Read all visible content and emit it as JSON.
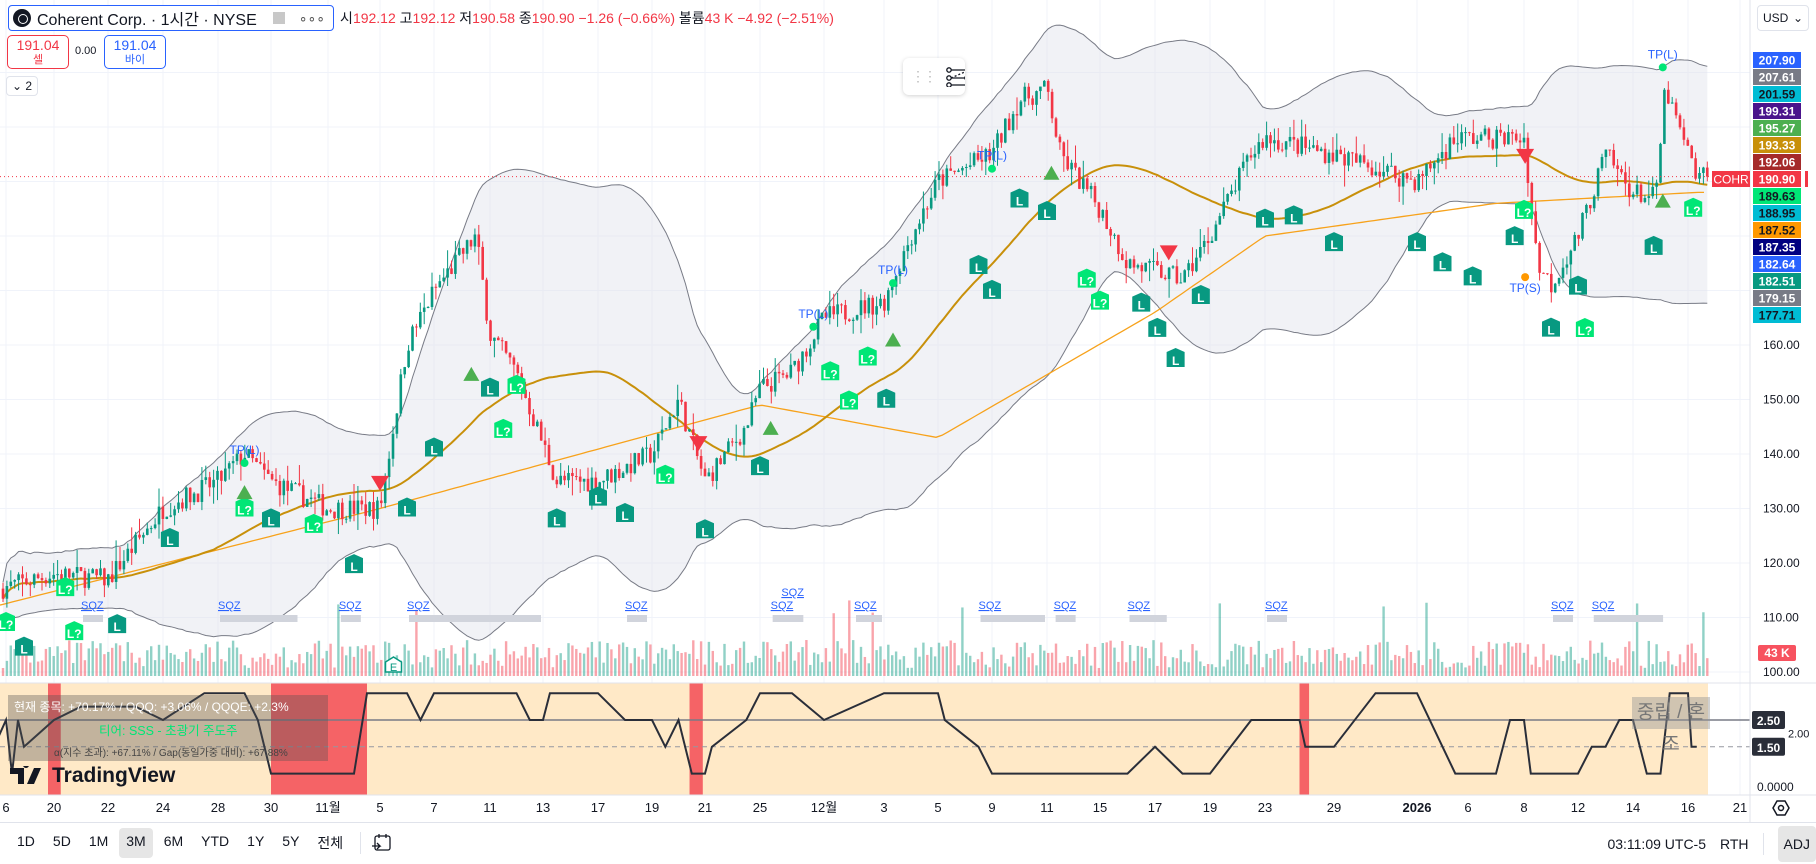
{
  "header": {
    "symbol_title": "Coherent Corp. · 1시간 · NYSE",
    "more": "∘∘∘",
    "ohlc": {
      "o_label": "시",
      "o": "192.12",
      "h_label": "고",
      "h": "192.12",
      "l_label": "저",
      "l": "190.58",
      "c_label": "종",
      "c": "190.90",
      "change": "−1.26 (−0.66%)",
      "vol_label": "볼륨",
      "vol": "43 K",
      "vol_change": "−4.92 (−2.51%)"
    },
    "sell": {
      "price": "191.04",
      "label": "셀"
    },
    "spread": "0.00",
    "buy": {
      "price": "191.04",
      "label": "바이"
    },
    "collapse": "⌄ 2",
    "currency": "USD"
  },
  "overlay": {
    "line1": "현재 종목: +70.17% / QQQ: +3.06% / QQQE: +2.3%",
    "line2": "티어: SSS - 초광기 주도주",
    "line3": "α(지수 초과): +67.11% / Gap(동일가중 대비): +67.88%",
    "regime": "중립 / 혼조",
    "brand": "TradingView"
  },
  "toolbar": {
    "ranges": [
      "1D",
      "5D",
      "1M",
      "3M",
      "6M",
      "YTD",
      "1Y",
      "5Y",
      "전체"
    ],
    "selected": "3M",
    "time": "03:11:09 UTC-5",
    "session": "RTH",
    "adj": "ADJ"
  },
  "colors": {
    "up": "#089981",
    "down": "#f23645",
    "bb_mid": "#c8900a",
    "ma_long": "#f7a21b",
    "accent": "#2962ff",
    "regime_bg": "#ffe9c7",
    "red_zone": "#f23645"
  },
  "chart_data": {
    "type": "candlestick",
    "symbol": "COHR",
    "interval": "1시간",
    "last_price": 190.9,
    "last_volume_label": "43 K",
    "price_ticks": [
      "160.00",
      "150.00",
      "140.00",
      "130.00",
      "120.00",
      "110.00",
      "100.00"
    ],
    "price_tags": [
      {
        "v": "207.90",
        "bg": "#2962ff",
        "fg": "#fff"
      },
      {
        "v": "207.61",
        "bg": "#787b86",
        "fg": "#fff"
      },
      {
        "v": "201.59",
        "bg": "#00bcd4",
        "fg": "#131722"
      },
      {
        "v": "199.31",
        "bg": "#4a148c",
        "fg": "#fff"
      },
      {
        "v": "195.27",
        "bg": "#4caf50",
        "fg": "#fff"
      },
      {
        "v": "193.33",
        "bg": "#c8900a",
        "fg": "#fff"
      },
      {
        "v": "192.06",
        "bg": "#a52a2a",
        "fg": "#fff"
      },
      {
        "v": "190.90",
        "bg": "#f23645",
        "fg": "#fff",
        "label": "COHR"
      },
      {
        "v": "189.63",
        "bg": "#00e676",
        "fg": "#131722"
      },
      {
        "v": "188.95",
        "bg": "#00bcd4",
        "fg": "#131722"
      },
      {
        "v": "187.52",
        "bg": "#ff9800",
        "fg": "#131722"
      },
      {
        "v": "187.35",
        "bg": "#000080",
        "fg": "#fff"
      },
      {
        "v": "182.64",
        "bg": "#2962ff",
        "fg": "#fff"
      },
      {
        "v": "182.51",
        "bg": "#089981",
        "fg": "#fff"
      },
      {
        "v": "179.15",
        "bg": "#787b86",
        "fg": "#fff"
      },
      {
        "v": "177.71",
        "bg": "#00bcd4",
        "fg": "#131722"
      }
    ],
    "x_ticks": [
      {
        "label": "6",
        "date": "2025-10-16"
      },
      {
        "label": "20",
        "date": "2025-10-20"
      },
      {
        "label": "22",
        "date": "2025-10-22"
      },
      {
        "label": "24",
        "date": "2025-10-24"
      },
      {
        "label": "28",
        "date": "2025-10-28"
      },
      {
        "label": "30",
        "date": "2025-10-30"
      },
      {
        "label": "11월",
        "date": "2025-11-03"
      },
      {
        "label": "5",
        "date": "2025-11-05"
      },
      {
        "label": "7",
        "date": "2025-11-07"
      },
      {
        "label": "11",
        "date": "2025-11-11"
      },
      {
        "label": "13",
        "date": "2025-11-13"
      },
      {
        "label": "17",
        "date": "2025-11-17"
      },
      {
        "label": "19",
        "date": "2025-11-19"
      },
      {
        "label": "21",
        "date": "2025-11-21"
      },
      {
        "label": "25",
        "date": "2025-11-25"
      },
      {
        "label": "12월",
        "date": "2025-12-01"
      },
      {
        "label": "3",
        "date": "2025-12-03"
      },
      {
        "label": "5",
        "date": "2025-12-05"
      },
      {
        "label": "9",
        "date": "2025-12-09"
      },
      {
        "label": "11",
        "date": "2025-12-11"
      },
      {
        "label": "15",
        "date": "2025-12-15"
      },
      {
        "label": "17",
        "date": "2025-12-17"
      },
      {
        "label": "19",
        "date": "2025-12-19"
      },
      {
        "label": "23",
        "date": "2025-12-23"
      },
      {
        "label": "29",
        "date": "2025-12-29"
      },
      {
        "label": "2026",
        "date": "2026-01-02"
      },
      {
        "label": "6",
        "date": "2026-01-06"
      },
      {
        "label": "8",
        "date": "2026-01-08"
      },
      {
        "label": "12",
        "date": "2026-01-12"
      },
      {
        "label": "14",
        "date": "2026-01-14"
      },
      {
        "label": "16",
        "date": "2026-01-16"
      },
      {
        "label": "21",
        "date": "2026-01-21"
      }
    ],
    "price_path": [
      [
        "2025-10-15",
        115
      ],
      [
        "2025-10-20",
        118
      ],
      [
        "2025-10-22",
        117
      ],
      [
        "2025-10-24",
        130
      ],
      [
        "2025-10-28",
        135
      ],
      [
        "2025-10-29",
        140
      ],
      [
        "2025-10-30",
        135
      ],
      [
        "2025-11-03",
        130
      ],
      [
        "2025-11-05",
        130
      ],
      [
        "2025-11-06",
        160
      ],
      [
        "2025-11-07",
        170
      ],
      [
        "2025-11-10",
        180
      ],
      [
        "2025-11-11",
        162
      ],
      [
        "2025-11-12",
        155
      ],
      [
        "2025-11-14",
        135
      ],
      [
        "2025-11-17",
        135
      ],
      [
        "2025-11-19",
        140
      ],
      [
        "2025-11-20",
        150
      ],
      [
        "2025-11-21",
        135
      ],
      [
        "2025-11-24",
        145
      ],
      [
        "2025-11-25",
        152
      ],
      [
        "2025-11-28",
        155
      ],
      [
        "2025-12-01",
        165
      ],
      [
        "2025-12-03",
        168
      ],
      [
        "2025-12-04",
        180
      ],
      [
        "2025-12-05",
        190
      ],
      [
        "2025-12-09",
        195
      ],
      [
        "2025-12-10",
        205
      ],
      [
        "2025-12-11",
        207
      ],
      [
        "2025-12-12",
        195
      ],
      [
        "2025-12-15",
        185
      ],
      [
        "2025-12-16",
        175
      ],
      [
        "2025-12-18",
        172
      ],
      [
        "2025-12-19",
        180
      ],
      [
        "2025-12-22",
        195
      ],
      [
        "2025-12-23",
        198
      ],
      [
        "2025-12-29",
        195
      ],
      [
        "2026-01-02",
        190
      ],
      [
        "2026-01-05",
        198
      ],
      [
        "2026-01-08",
        198
      ],
      [
        "2026-01-09",
        175
      ],
      [
        "2026-01-10",
        171
      ],
      [
        "2026-01-12",
        180
      ],
      [
        "2026-01-13",
        195
      ],
      [
        "2026-01-14",
        188
      ],
      [
        "2026-01-14T20:00",
        187
      ],
      [
        "2026-01-15T04:00",
        207
      ],
      [
        "2026-01-16",
        195
      ],
      [
        "2026-01-16T20:00",
        190.9
      ]
    ],
    "ma_long": [
      [
        "2025-10-15",
        112
      ],
      [
        "2025-11-05",
        130
      ],
      [
        "2025-11-25",
        149
      ],
      [
        "2025-12-05",
        143
      ],
      [
        "2025-12-17",
        166
      ],
      [
        "2025-12-23",
        180
      ],
      [
        "2026-01-07",
        186
      ],
      [
        "2026-01-16T20:00",
        188
      ]
    ],
    "markers": [
      {
        "t": "L?",
        "d": "2025-10-16",
        "p": 109
      },
      {
        "t": "L",
        "d": "2025-10-17T12:00",
        "p": 108.5
      },
      {
        "t": "L?",
        "d": "2025-10-20T10:00",
        "p": 115.4
      },
      {
        "t": "L?",
        "d": "2025-10-20T18:00",
        "p": 115.4
      },
      {
        "t": "L",
        "d": "2025-10-22T08:00",
        "p": 108.6
      },
      {
        "t": "L",
        "d": "2025-10-24T12:00",
        "p": 124.4
      },
      {
        "t": "L?",
        "d": "2025-10-29",
        "p": 130
      },
      {
        "t": "up",
        "d": "2025-10-29",
        "p": 133
      },
      {
        "t": "TP(L)",
        "d": "2025-10-29",
        "p": 140
      },
      {
        "t": "L",
        "d": "2025-10-30",
        "p": 128
      },
      {
        "t": "L?",
        "d": "2025-11-02",
        "p": 127
      },
      {
        "t": "L",
        "d": "2025-11-04",
        "p": 119.6
      },
      {
        "t": "down",
        "d": "2025-11-05",
        "p": 134.7
      },
      {
        "t": "L",
        "d": "2025-11-06",
        "p": 130
      },
      {
        "t": "L",
        "d": "2025-11-07",
        "p": 141
      },
      {
        "t": "up",
        "d": "2025-11-09T16:00",
        "p": 154.7
      },
      {
        "t": "L",
        "d": "2025-11-11",
        "p": 152
      },
      {
        "t": "L?",
        "d": "2025-11-11T12:00",
        "p": 152.5
      },
      {
        "t": "L?",
        "d": "2025-11-12",
        "p": 152.5
      },
      {
        "t": "L",
        "d": "2025-11-14",
        "p": 128
      },
      {
        "t": "L",
        "d": "2025-11-17",
        "p": 132
      },
      {
        "t": "L",
        "d": "2025-11-18",
        "p": 129
      },
      {
        "t": "L?",
        "d": "2025-11-19T12:00",
        "p": 136
      },
      {
        "t": "down",
        "d": "2025-11-20T18:00",
        "p": 142
      },
      {
        "t": "L",
        "d": "2025-11-21",
        "p": 126
      },
      {
        "t": "L",
        "d": "2025-11-25",
        "p": 137.6
      },
      {
        "t": "up",
        "d": "2025-11-26",
        "p": 144.8
      },
      {
        "t": "TP(L)",
        "d": "2025-11-30",
        "p": 165
      },
      {
        "t": "L?",
        "d": "2025-12-01T05:00",
        "p": 155
      },
      {
        "t": "L?",
        "d": "2025-12-01T20:00",
        "p": 157.7
      },
      {
        "t": "L?",
        "d": "2025-12-02T11:00",
        "p": 157.7
      },
      {
        "t": "L",
        "d": "2025-12-03T02:00",
        "p": 154
      },
      {
        "t": "up",
        "d": "2025-12-03T08:00",
        "p": 161
      },
      {
        "t": "TP(L)",
        "d": "2025-12-03T08:00",
        "p": 173
      },
      {
        "t": "L",
        "d": "2025-12-08",
        "p": 174.5
      },
      {
        "t": "L",
        "d": "2025-12-09",
        "p": 178
      },
      {
        "t": "TP(L)",
        "d": "2025-12-09",
        "p": 194
      },
      {
        "t": "L",
        "d": "2025-12-10",
        "p": 186.7
      },
      {
        "t": "L",
        "d": "2025-12-11",
        "p": 184.4
      },
      {
        "t": "up",
        "d": "2025-12-11T08:00",
        "p": 191.6
      },
      {
        "t": "L?",
        "d": "2025-12-14",
        "p": 172
      },
      {
        "t": "L?",
        "d": "2025-12-15",
        "p": 172
      },
      {
        "t": "L",
        "d": "2025-12-16T12:00",
        "p": 167.6
      },
      {
        "t": "L",
        "d": "2025-12-17T02:00",
        "p": 167
      },
      {
        "t": "down",
        "d": "2025-12-17T12:00",
        "p": 177
      },
      {
        "t": "L",
        "d": "2025-12-17T18:00",
        "p": 165.5
      },
      {
        "t": "L",
        "d": "2025-12-18T16:00",
        "p": 169
      },
      {
        "t": "L",
        "d": "2025-12-23",
        "p": 183
      },
      {
        "t": "L",
        "d": "2025-12-25T12:00",
        "p": 183.6
      },
      {
        "t": "L",
        "d": "2025-12-29",
        "p": 178.7
      },
      {
        "t": "L",
        "d": "2026-01-02",
        "p": 178.7
      },
      {
        "t": "L",
        "d": "2026-01-04",
        "p": 175
      },
      {
        "t": "L",
        "d": "2026-01-06T04:00",
        "p": 172.4
      },
      {
        "t": "L",
        "d": "2026-01-07T16:00",
        "p": 179.8
      },
      {
        "t": "L?",
        "d": "2026-01-08",
        "p": 184.6
      },
      {
        "t": "down",
        "d": "2026-01-08T02:00",
        "p": 194.7
      },
      {
        "t": "TP(S)",
        "d": "2026-01-08T02:00",
        "p": 169.7
      },
      {
        "t": "L",
        "d": "2026-01-10",
        "p": 163
      },
      {
        "t": "L",
        "d": "2026-01-12",
        "p": 170.7
      },
      {
        "t": "L?",
        "d": "2026-01-12T06:00",
        "p": 171
      },
      {
        "t": "L",
        "d": "2026-01-14T18:00",
        "p": 178
      },
      {
        "t": "up",
        "d": "2026-01-15T02:00",
        "p": 186.5
      },
      {
        "t": "TP(L)",
        "d": "2026-01-15T02:00",
        "p": 212.6
      },
      {
        "t": "L?",
        "d": "2026-01-16T12:00",
        "p": 185
      }
    ],
    "squeeze": {
      "label": "SQZ",
      "ranges": [
        [
          "2025-10-21",
          "2025-10-21T12:00"
        ],
        [
          "2025-10-28",
          "2025-11-01"
        ],
        [
          "2025-11-03T10:00",
          "2025-11-03T14:00"
        ],
        [
          "2025-11-06",
          "2025-11-13"
        ],
        [
          "2025-11-18",
          "2025-11-18T12:00"
        ],
        [
          "2025-11-26",
          "2025-11-26T12:00"
        ],
        [
          "2025-11-27",
          "2025-11-27T12:00"
        ],
        [
          "2025-12-02",
          "2025-12-03"
        ],
        [
          "2025-12-08",
          "2025-12-11"
        ],
        [
          "2025-12-11T12:00",
          "2025-12-12"
        ],
        [
          "2025-12-16",
          "2025-12-17T12:00"
        ],
        [
          "2025-12-23",
          "2025-12-24"
        ],
        [
          "2026-01-10",
          "2026-01-11"
        ],
        [
          "2026-01-12T12:00",
          "2026-01-15T04:00"
        ]
      ]
    },
    "earnings": {
      "label": "E",
      "d": "2025-11-05T12:00"
    },
    "regime": {
      "ticks": [
        "2.00",
        "0.0000"
      ],
      "tags": [
        "2.50",
        "1.50"
      ],
      "path": [
        [
          "2025-10-15",
          1.5
        ],
        [
          "2025-10-16",
          2.5
        ],
        [
          "2025-10-16T12:00",
          0.5
        ],
        [
          "2025-10-17",
          2.5
        ],
        [
          "2025-10-17T12:00",
          1.5
        ],
        [
          "2025-10-20",
          2.5
        ],
        [
          "2025-10-21",
          3
        ],
        [
          "2025-10-23",
          3
        ],
        [
          "2025-10-24",
          2.5
        ],
        [
          "2025-10-27",
          3.5
        ],
        [
          "2025-10-29",
          3.5
        ],
        [
          "2025-10-29T12:00",
          2.5
        ],
        [
          "2025-10-30",
          0.5
        ],
        [
          "2025-11-04",
          0.5
        ],
        [
          "2025-11-04T12:00",
          3.5
        ],
        [
          "2025-11-06",
          3.5
        ],
        [
          "2025-11-06T12:00",
          2.5
        ],
        [
          "2025-11-07",
          3.5
        ],
        [
          "2025-11-12",
          3.5
        ],
        [
          "2025-11-12T12:00",
          2.5
        ],
        [
          "2025-11-13",
          2.5
        ],
        [
          "2025-11-13T12:00",
          3.5
        ],
        [
          "2025-11-17",
          3.5
        ],
        [
          "2025-11-18",
          2.5
        ],
        [
          "2025-11-19",
          2.5
        ],
        [
          "2025-11-19T12:00",
          1.5
        ],
        [
          "2025-11-20",
          2.5
        ],
        [
          "2025-11-20T12:00",
          0.5
        ],
        [
          "2025-11-21",
          0.5
        ],
        [
          "2025-11-21T12:00",
          1.5
        ],
        [
          "2025-11-24",
          2.5
        ],
        [
          "2025-11-25",
          3.5
        ],
        [
          "2025-11-28",
          3.5
        ],
        [
          "2025-12-01",
          2.5
        ],
        [
          "2025-12-03",
          3.5
        ],
        [
          "2025-12-05",
          3.5
        ],
        [
          "2025-12-05T12:00",
          2.5
        ],
        [
          "2025-12-08",
          1.5
        ],
        [
          "2025-12-09",
          0.5
        ],
        [
          "2025-12-16",
          0.5
        ],
        [
          "2025-12-17",
          1.5
        ],
        [
          "2025-12-18",
          0.5
        ],
        [
          "2025-12-19",
          0.5
        ],
        [
          "2025-12-22",
          2.5
        ],
        [
          "2025-12-26",
          2.5
        ],
        [
          "2025-12-26T12:00",
          1.5
        ],
        [
          "2025-12-29",
          1.5
        ],
        [
          "2025-12-31",
          3.5
        ],
        [
          "2026-01-02",
          3.5
        ],
        [
          "2026-01-05",
          0.5
        ],
        [
          "2026-01-07",
          0.5
        ],
        [
          "2026-01-07T12:00",
          2.5
        ],
        [
          "2026-01-08",
          2.5
        ],
        [
          "2026-01-08T12:00",
          0.5
        ],
        [
          "2026-01-12",
          0.5
        ],
        [
          "2026-01-12T12:00",
          1.5
        ],
        [
          "2026-01-13",
          1.5
        ],
        [
          "2026-01-13T12:00",
          2.5
        ],
        [
          "2026-01-14",
          2.5
        ],
        [
          "2026-01-14T12:00",
          0.5
        ],
        [
          "2026-01-15",
          0.5
        ],
        [
          "2026-01-15T08:00",
          3.5
        ],
        [
          "2026-01-16",
          3.5
        ],
        [
          "2026-01-16T08:00",
          1.5
        ],
        [
          "2026-01-16T20:00",
          1.5
        ]
      ],
      "red_zones": [
        [
          "2025-10-19T12:00",
          "2025-10-20T06:00"
        ],
        [
          "2025-10-30",
          "2025-11-04T12:00"
        ],
        [
          "2025-11-20T10:00",
          "2025-11-20T22:00"
        ],
        [
          "2025-12-26",
          "2025-12-26T20:00"
        ]
      ]
    }
  }
}
